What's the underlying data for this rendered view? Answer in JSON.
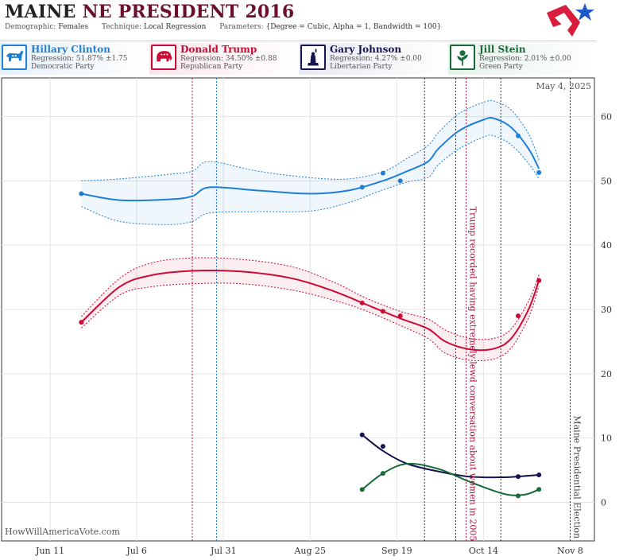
{
  "header": {
    "state": "MAINE",
    "race": "NE PRESIDENT 2016",
    "demographic_label": "Demographic:",
    "demographic": "Females",
    "technique_label": "Technique:",
    "technique": "Local Regression",
    "parameters_label": "Parameters:",
    "parameters": "{Degree = Cubic, Alpha = 1, Bandwidth = 100}"
  },
  "candidates": [
    {
      "name": "Hillary Clinton",
      "regression": "Regression: 51.87% ±1.75",
      "party": "Democratic Party",
      "color": "#1f7fd6",
      "icon": "donkey-icon"
    },
    {
      "name": "Donald Trump",
      "regression": "Regression: 34.50% ±0.88",
      "party": "Republican Party",
      "color": "#cc0a35",
      "icon": "elephant-icon"
    },
    {
      "name": "Gary Johnson",
      "regression": "Regression: 4.27% ±0.00",
      "party": "Libertarian Party",
      "color": "#141450",
      "icon": "statue-of-liberty-icon"
    },
    {
      "name": "Jill Stein",
      "regression": "Regression: 2.01% ±0.00",
      "party": "Green Party",
      "color": "#176b3a",
      "icon": "flower-icon"
    }
  ],
  "chart_data": {
    "type": "line",
    "date_stamp": "May 4, 2025",
    "watermark": "HowWillAmericaVote.com",
    "x_ticks": [
      "Jun 11",
      "Jul 6",
      "Jul 31",
      "Aug 25",
      "Sep 19",
      "Oct 14",
      "Nov 8"
    ],
    "x_tick_dates": [
      "2016-06-11",
      "2016-07-06",
      "2016-07-31",
      "2016-08-25",
      "2016-09-19",
      "2016-10-14",
      "2016-11-08"
    ],
    "xlim": [
      "2016-05-28",
      "2016-11-15"
    ],
    "ylim": [
      -6,
      66
    ],
    "y_ticks": [
      0,
      10,
      20,
      30,
      40,
      50,
      60
    ],
    "grid": true,
    "vlines": [
      {
        "date": "2016-07-22",
        "color": "#b0103c"
      },
      {
        "date": "2016-07-29",
        "color": "#1f7fd6"
      },
      {
        "date": "2016-09-27",
        "color": "#333333"
      },
      {
        "date": "2016-10-06",
        "color": "#333333"
      },
      {
        "date": "2016-10-09",
        "color": "#b0103c"
      },
      {
        "date": "2016-10-19",
        "color": "#333333"
      },
      {
        "date": "2016-11-08",
        "color": "#333333"
      }
    ],
    "annotations": [
      {
        "text": "Trump recorded having extremely lewd conversation about women in 2005",
        "date": "2016-10-09",
        "y": 46,
        "color": "#b0103c"
      },
      {
        "text": "Maine Presidential Election",
        "date": "2016-11-08",
        "y": 13.5,
        "color": "#444444"
      }
    ],
    "series": [
      {
        "name": "Hillary Clinton",
        "color": "#1f7fd6",
        "points": [
          [
            "2016-06-20",
            48.0
          ],
          [
            "2016-09-09",
            49.0
          ],
          [
            "2016-09-15",
            51.2
          ],
          [
            "2016-09-20",
            50.0
          ],
          [
            "2016-10-24",
            57.0
          ],
          [
            "2016-10-30",
            51.3
          ]
        ],
        "trend": [
          [
            "2016-06-20",
            48.0
          ],
          [
            "2016-07-01",
            47.0
          ],
          [
            "2016-07-15",
            47.1
          ],
          [
            "2016-07-22",
            47.6
          ],
          [
            "2016-07-27",
            49.0
          ],
          [
            "2016-08-10",
            48.5
          ],
          [
            "2016-08-25",
            48.0
          ],
          [
            "2016-09-05",
            48.5
          ],
          [
            "2016-09-15",
            50.0
          ],
          [
            "2016-09-22",
            51.5
          ],
          [
            "2016-09-28",
            53.0
          ],
          [
            "2016-10-01",
            55.0
          ],
          [
            "2016-10-07",
            57.8
          ],
          [
            "2016-10-14",
            59.5
          ],
          [
            "2016-10-17",
            59.7
          ],
          [
            "2016-10-22",
            58.3
          ],
          [
            "2016-10-27",
            55.0
          ],
          [
            "2016-10-30",
            51.9
          ]
        ],
        "upper": [
          [
            "2016-06-20",
            50.0
          ],
          [
            "2016-07-01",
            50.3
          ],
          [
            "2016-07-15",
            51.0
          ],
          [
            "2016-07-22",
            51.5
          ],
          [
            "2016-07-27",
            53.0
          ],
          [
            "2016-08-10",
            51.5
          ],
          [
            "2016-08-25",
            50.5
          ],
          [
            "2016-09-05",
            50.3
          ],
          [
            "2016-09-15",
            51.4
          ],
          [
            "2016-09-22",
            53.5
          ],
          [
            "2016-09-28",
            55.5
          ],
          [
            "2016-10-01",
            57.5
          ],
          [
            "2016-10-07",
            60.5
          ],
          [
            "2016-10-14",
            62.2
          ],
          [
            "2016-10-17",
            62.4
          ],
          [
            "2016-10-22",
            61.0
          ],
          [
            "2016-10-27",
            57.3
          ],
          [
            "2016-10-30",
            53.3
          ]
        ],
        "lower": [
          [
            "2016-06-20",
            46.0
          ],
          [
            "2016-07-01",
            43.7
          ],
          [
            "2016-07-15",
            43.2
          ],
          [
            "2016-07-22",
            43.7
          ],
          [
            "2016-07-27",
            45.0
          ],
          [
            "2016-08-10",
            45.2
          ],
          [
            "2016-08-25",
            45.3
          ],
          [
            "2016-09-05",
            46.6
          ],
          [
            "2016-09-15",
            48.6
          ],
          [
            "2016-09-22",
            49.8
          ],
          [
            "2016-09-28",
            50.5
          ],
          [
            "2016-10-01",
            52.5
          ],
          [
            "2016-10-07",
            55.0
          ],
          [
            "2016-10-14",
            56.8
          ],
          [
            "2016-10-17",
            57.0
          ],
          [
            "2016-10-22",
            55.6
          ],
          [
            "2016-10-27",
            52.7
          ],
          [
            "2016-10-30",
            50.3
          ]
        ]
      },
      {
        "name": "Donald Trump",
        "color": "#cc0a35",
        "points": [
          [
            "2016-06-20",
            28.0
          ],
          [
            "2016-09-09",
            31.0
          ],
          [
            "2016-09-15",
            29.7
          ],
          [
            "2016-09-20",
            29.0
          ],
          [
            "2016-10-24",
            29.0
          ],
          [
            "2016-10-30",
            34.5
          ]
        ],
        "trend": [
          [
            "2016-06-20",
            28.0
          ],
          [
            "2016-07-01",
            33.5
          ],
          [
            "2016-07-10",
            35.3
          ],
          [
            "2016-07-22",
            36.0
          ],
          [
            "2016-08-05",
            35.9
          ],
          [
            "2016-08-20",
            34.8
          ],
          [
            "2016-09-01",
            32.8
          ],
          [
            "2016-09-10",
            30.8
          ],
          [
            "2016-09-20",
            28.6
          ],
          [
            "2016-09-28",
            27.0
          ],
          [
            "2016-10-03",
            25.0
          ],
          [
            "2016-10-10",
            23.8
          ],
          [
            "2016-10-17",
            23.9
          ],
          [
            "2016-10-22",
            25.5
          ],
          [
            "2016-10-27",
            30.0
          ],
          [
            "2016-10-30",
            34.5
          ]
        ],
        "upper": [
          [
            "2016-06-20",
            28.9
          ],
          [
            "2016-07-01",
            34.8
          ],
          [
            "2016-07-10",
            37.2
          ],
          [
            "2016-07-22",
            38.0
          ],
          [
            "2016-08-05",
            37.8
          ],
          [
            "2016-08-20",
            36.6
          ],
          [
            "2016-09-01",
            34.2
          ],
          [
            "2016-09-10",
            31.8
          ],
          [
            "2016-09-20",
            29.7
          ],
          [
            "2016-09-28",
            28.5
          ],
          [
            "2016-10-03",
            26.8
          ],
          [
            "2016-10-10",
            25.5
          ],
          [
            "2016-10-17",
            25.5
          ],
          [
            "2016-10-22",
            27.0
          ],
          [
            "2016-10-27",
            31.3
          ],
          [
            "2016-10-30",
            35.4
          ]
        ],
        "lower": [
          [
            "2016-06-20",
            27.1
          ],
          [
            "2016-07-01",
            32.2
          ],
          [
            "2016-07-10",
            33.5
          ],
          [
            "2016-07-22",
            34.0
          ],
          [
            "2016-08-05",
            34.0
          ],
          [
            "2016-08-20",
            33.0
          ],
          [
            "2016-09-01",
            31.4
          ],
          [
            "2016-09-10",
            29.8
          ],
          [
            "2016-09-20",
            27.5
          ],
          [
            "2016-09-28",
            25.5
          ],
          [
            "2016-10-03",
            23.2
          ],
          [
            "2016-10-10",
            22.1
          ],
          [
            "2016-10-17",
            22.3
          ],
          [
            "2016-10-22",
            24.0
          ],
          [
            "2016-10-27",
            28.7
          ],
          [
            "2016-10-30",
            33.6
          ]
        ]
      },
      {
        "name": "Gary Johnson",
        "color": "#141450",
        "points": [
          [
            "2016-09-09",
            10.5
          ],
          [
            "2016-09-15",
            8.7
          ],
          [
            "2016-10-24",
            4.0
          ],
          [
            "2016-10-30",
            4.27
          ]
        ],
        "trend": [
          [
            "2016-09-09",
            10.5
          ],
          [
            "2016-09-15",
            8.0
          ],
          [
            "2016-09-22",
            6.0
          ],
          [
            "2016-10-01",
            4.8
          ],
          [
            "2016-10-10",
            4.0
          ],
          [
            "2016-10-20",
            3.9
          ],
          [
            "2016-10-26",
            4.1
          ],
          [
            "2016-10-30",
            4.27
          ]
        ]
      },
      {
        "name": "Jill Stein",
        "color": "#176b3a",
        "points": [
          [
            "2016-09-09",
            2.0
          ],
          [
            "2016-09-15",
            4.5
          ],
          [
            "2016-10-24",
            1.0
          ],
          [
            "2016-10-30",
            2.01
          ]
        ],
        "trend": [
          [
            "2016-09-09",
            2.0
          ],
          [
            "2016-09-15",
            4.5
          ],
          [
            "2016-09-22",
            6.0
          ],
          [
            "2016-10-01",
            5.2
          ],
          [
            "2016-10-10",
            3.2
          ],
          [
            "2016-10-20",
            1.3
          ],
          [
            "2016-10-26",
            1.2
          ],
          [
            "2016-10-30",
            2.01
          ]
        ]
      }
    ]
  }
}
